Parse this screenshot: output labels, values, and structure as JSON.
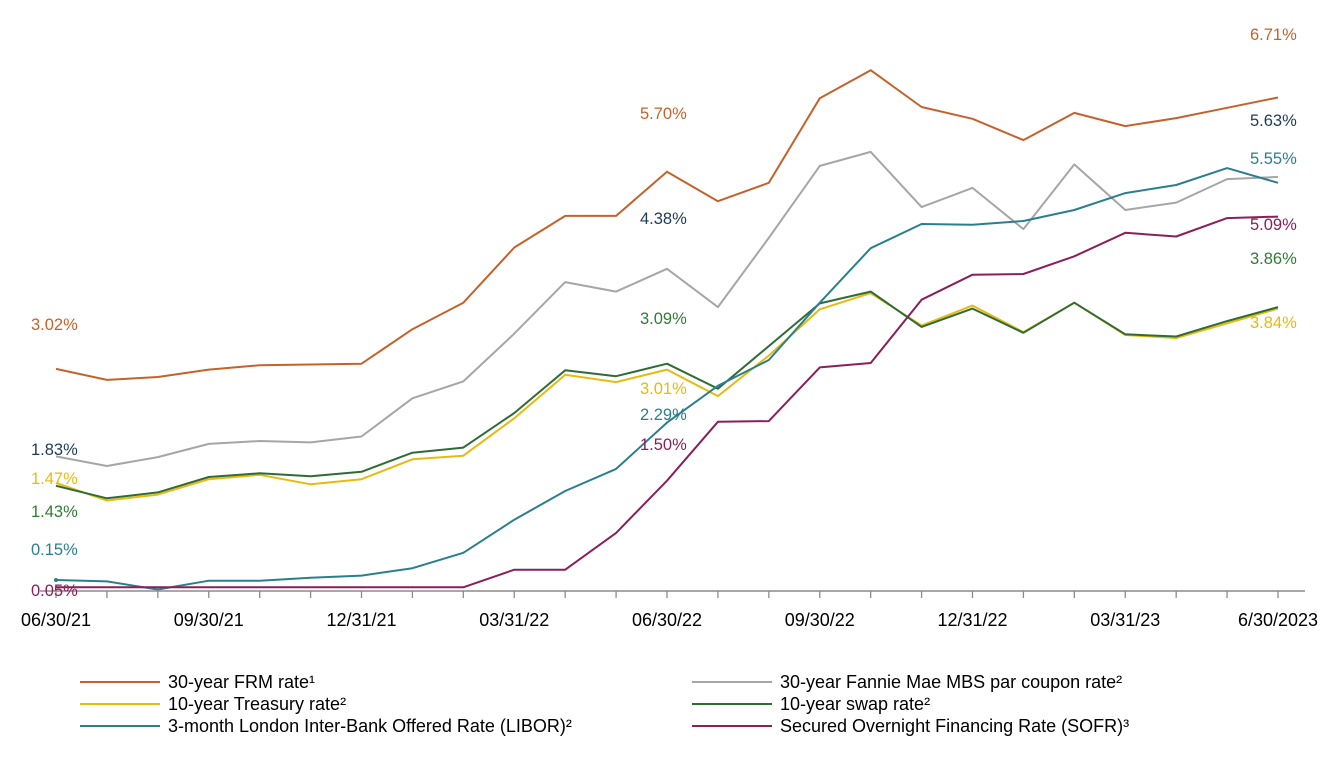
{
  "chart_data": {
    "type": "line",
    "title": "",
    "xlabel": "",
    "ylabel": "",
    "x": [
      "06/30/21",
      "07/31/21",
      "08/31/21",
      "09/30/21",
      "10/31/21",
      "11/30/21",
      "12/31/21",
      "01/31/22",
      "02/28/22",
      "03/31/22",
      "04/30/22",
      "05/31/22",
      "06/30/22",
      "07/31/22",
      "08/31/22",
      "09/30/22",
      "10/31/22",
      "11/30/22",
      "12/31/22",
      "01/31/23",
      "02/28/23",
      "03/31/23",
      "04/30/23",
      "05/31/23",
      "6/30/2023"
    ],
    "x_tick_labels": [
      "06/30/21",
      "09/30/21",
      "12/31/21",
      "03/31/22",
      "06/30/22",
      "09/30/22",
      "12/31/22",
      "03/31/23",
      "6/30/2023"
    ],
    "x_tick_indices": [
      0,
      3,
      6,
      9,
      12,
      15,
      18,
      21,
      24
    ],
    "ylim": [
      0,
      7.6
    ],
    "grid": false,
    "legend_placement": "bottom",
    "series": [
      {
        "name": "30-year FRM rate¹",
        "color": "#c5622b",
        "values": [
          3.02,
          2.87,
          2.91,
          3.01,
          3.07,
          3.08,
          3.09,
          3.56,
          3.92,
          4.67,
          5.1,
          5.1,
          5.7,
          5.3,
          5.55,
          6.7,
          7.08,
          6.58,
          6.42,
          6.13,
          6.5,
          6.32,
          6.43,
          6.57,
          6.71
        ]
      },
      {
        "name": "30-year Fannie Mae MBS par coupon rate²",
        "color": "#a6a6a6",
        "values": [
          1.83,
          1.7,
          1.82,
          2.0,
          2.04,
          2.02,
          2.1,
          2.62,
          2.85,
          3.5,
          4.2,
          4.07,
          4.38,
          3.86,
          4.8,
          5.78,
          5.97,
          5.22,
          5.48,
          4.92,
          5.8,
          5.18,
          5.28,
          5.6,
          5.63
        ]
      },
      {
        "name": "10-year Treasury rate²",
        "color": "#e8b90f",
        "values": [
          1.47,
          1.23,
          1.31,
          1.52,
          1.58,
          1.45,
          1.52,
          1.79,
          1.84,
          2.35,
          2.94,
          2.84,
          3.01,
          2.65,
          3.2,
          3.83,
          4.05,
          3.61,
          3.88,
          3.52,
          3.92,
          3.48,
          3.44,
          3.64,
          3.84
        ]
      },
      {
        "name": "10-year swap rate²",
        "color": "#2f6b35",
        "values": [
          1.43,
          1.26,
          1.34,
          1.55,
          1.6,
          1.56,
          1.62,
          1.88,
          1.95,
          2.42,
          3.0,
          2.92,
          3.09,
          2.75,
          3.33,
          3.91,
          4.07,
          3.59,
          3.84,
          3.51,
          3.92,
          3.49,
          3.46,
          3.67,
          3.86
        ]
      },
      {
        "name": "3-month London Inter-Bank Offered Rate (LIBOR)²",
        "color": "#2a7f8f",
        "values": [
          0.15,
          0.13,
          0.02,
          0.14,
          0.14,
          0.18,
          0.21,
          0.31,
          0.52,
          0.97,
          1.36,
          1.66,
          2.29,
          2.79,
          3.14,
          3.92,
          4.66,
          4.99,
          4.98,
          5.03,
          5.18,
          5.41,
          5.52,
          5.75,
          5.55
        ]
      },
      {
        "name": "Secured Overnight Financing Rate (SOFR)³",
        "color": "#8a1f5a",
        "values": [
          0.05,
          0.05,
          0.05,
          0.05,
          0.05,
          0.05,
          0.05,
          0.05,
          0.05,
          0.29,
          0.29,
          0.79,
          1.5,
          2.3,
          2.31,
          3.04,
          3.1,
          3.96,
          4.3,
          4.31,
          4.55,
          4.87,
          4.82,
          5.07,
          5.09
        ]
      }
    ],
    "annotations": [
      {
        "text": "3.02%",
        "series": 0,
        "index": 0
      },
      {
        "text": "5.70%",
        "series": 0,
        "index": 12
      },
      {
        "text": "6.71%",
        "series": 0,
        "index": 24
      },
      {
        "text": "1.83%",
        "series": 1,
        "index": 0
      },
      {
        "text": "4.38%",
        "series": 1,
        "index": 12
      },
      {
        "text": "5.63%",
        "series": 1,
        "index": 24
      },
      {
        "text": "1.47%",
        "series": 2,
        "index": 0
      },
      {
        "text": "3.01%",
        "series": 2,
        "index": 12
      },
      {
        "text": "3.84%",
        "series": 2,
        "index": 24
      },
      {
        "text": "1.43%",
        "series": 3,
        "index": 0
      },
      {
        "text": "3.09%",
        "series": 3,
        "index": 12
      },
      {
        "text": "3.86%",
        "series": 3,
        "index": 24
      },
      {
        "text": "0.15%",
        "series": 4,
        "index": 0
      },
      {
        "text": "2.29%",
        "series": 4,
        "index": 12
      },
      {
        "text": "5.55%",
        "series": 4,
        "index": 24
      },
      {
        "text": "0.05%",
        "series": 5,
        "index": 0
      },
      {
        "text": "1.50%",
        "series": 5,
        "index": 12
      },
      {
        "text": "5.09%",
        "series": 5,
        "index": 24
      }
    ],
    "annotation_colors": {
      "0": "#c5622b",
      "1": "#1f3b57",
      "2": "#e8b90f",
      "3": "#2f7d35",
      "4": "#2a7f8f",
      "5": "#8a1f5a"
    }
  }
}
